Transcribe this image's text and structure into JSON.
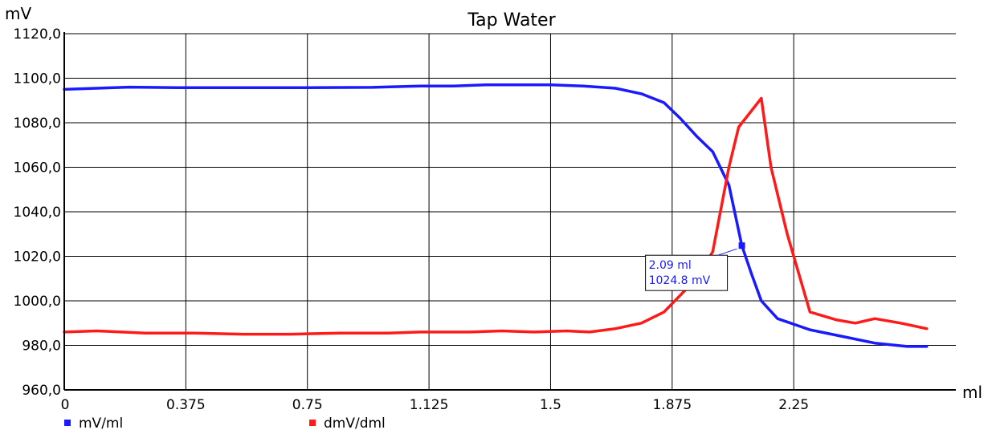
{
  "chart_data": {
    "type": "line",
    "title": "Tap Water",
    "ylabel": "mV",
    "xlabel": "ml",
    "xlim": [
      0,
      2.75
    ],
    "ylim": [
      960,
      1120
    ],
    "x_ticks": [
      0,
      0.375,
      0.75,
      1.125,
      1.5,
      1.875,
      2.25
    ],
    "x_tick_labels": [
      "0",
      "0.375",
      "0.75",
      "1.125",
      "1.5",
      "1.875",
      "2.25"
    ],
    "y_ticks": [
      960,
      980,
      1000,
      1020,
      1040,
      1060,
      1080,
      1100,
      1120
    ],
    "y_tick_labels": [
      "960,0",
      "980,0",
      "1000,0",
      "1020,0",
      "1040,0",
      "1060,0",
      "1080,0",
      "1100,0",
      "1120,0"
    ],
    "grid": true,
    "legend_position": "bottom-left",
    "series": [
      {
        "name": "mV/ml",
        "color": "#1a1aff",
        "points": [
          [
            0.0,
            1095.0
          ],
          [
            0.1,
            1095.5
          ],
          [
            0.2,
            1096.0
          ],
          [
            0.35,
            1095.8
          ],
          [
            0.55,
            1095.8
          ],
          [
            0.75,
            1095.8
          ],
          [
            0.95,
            1095.9
          ],
          [
            1.1,
            1096.5
          ],
          [
            1.2,
            1096.5
          ],
          [
            1.3,
            1097.0
          ],
          [
            1.5,
            1097.0
          ],
          [
            1.6,
            1096.5
          ],
          [
            1.7,
            1095.5
          ],
          [
            1.78,
            1093.0
          ],
          [
            1.85,
            1089.0
          ],
          [
            1.9,
            1082.0
          ],
          [
            1.95,
            1074.0
          ],
          [
            2.0,
            1067.0
          ],
          [
            2.05,
            1052.0
          ],
          [
            2.09,
            1024.8
          ],
          [
            2.12,
            1012.0
          ],
          [
            2.15,
            1000.0
          ],
          [
            2.2,
            992.0
          ],
          [
            2.3,
            987.0
          ],
          [
            2.4,
            984.0
          ],
          [
            2.5,
            981.0
          ],
          [
            2.6,
            979.5
          ],
          [
            2.66,
            979.5
          ]
        ]
      },
      {
        "name": "dmV/dml",
        "color": "#ff1a1a",
        "points": [
          [
            0.0,
            986.0
          ],
          [
            0.1,
            986.5
          ],
          [
            0.25,
            985.5
          ],
          [
            0.4,
            985.5
          ],
          [
            0.55,
            985.0
          ],
          [
            0.7,
            985.0
          ],
          [
            0.85,
            985.5
          ],
          [
            1.0,
            985.5
          ],
          [
            1.1,
            986.0
          ],
          [
            1.25,
            986.0
          ],
          [
            1.35,
            986.5
          ],
          [
            1.45,
            986.0
          ],
          [
            1.55,
            986.5
          ],
          [
            1.62,
            986.0
          ],
          [
            1.7,
            987.5
          ],
          [
            1.78,
            990.0
          ],
          [
            1.85,
            995.0
          ],
          [
            1.95,
            1010.0
          ],
          [
            2.0,
            1022.0
          ],
          [
            2.05,
            1060.0
          ],
          [
            2.08,
            1078.0
          ],
          [
            2.15,
            1091.0
          ],
          [
            2.18,
            1060.0
          ],
          [
            2.23,
            1030.0
          ],
          [
            2.3,
            995.0
          ],
          [
            2.38,
            991.5
          ],
          [
            2.44,
            990.0
          ],
          [
            2.5,
            992.0
          ],
          [
            2.58,
            990.0
          ],
          [
            2.66,
            987.5
          ]
        ]
      }
    ],
    "annotations": [
      {
        "series": "mV/ml",
        "x": 2.09,
        "y": 1024.8,
        "text_lines": [
          "2.09 ml",
          "1024.8 mV"
        ]
      }
    ]
  }
}
